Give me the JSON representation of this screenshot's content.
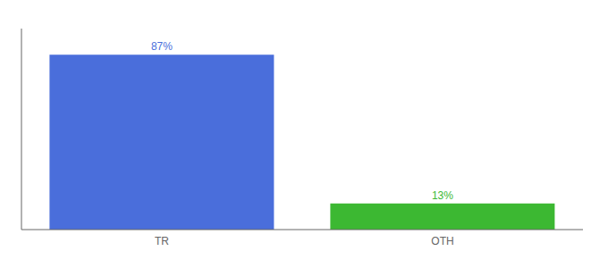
{
  "chart_data": {
    "type": "bar",
    "categories": [
      "TR",
      "OTH"
    ],
    "values": [
      87,
      13
    ],
    "colors": [
      "#4a6edb",
      "#3cb832"
    ],
    "value_labels": [
      "87%",
      "13%"
    ],
    "data_labels": true,
    "ylim": [
      0,
      100
    ],
    "tick_labels": "x"
  }
}
